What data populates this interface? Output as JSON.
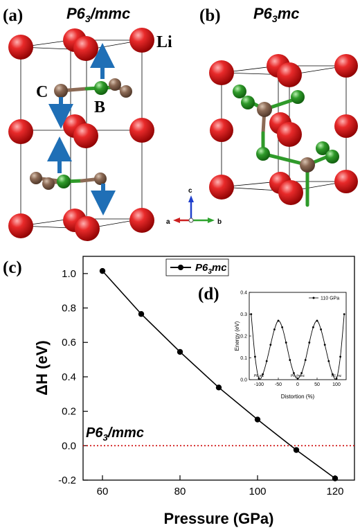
{
  "panel_labels": {
    "a": "(a)",
    "b": "(b)",
    "c": "(c)",
    "d": "(d)"
  },
  "structures": {
    "a_title": {
      "base": "P6",
      "sub": "3",
      "rest": "/mmc"
    },
    "b_title": {
      "base": "P6",
      "sub": "3",
      "rest": "mc"
    },
    "atom_labels": {
      "li": "Li",
      "c": "C",
      "b": "B"
    },
    "atom_colors": {
      "li": "#d81e1e",
      "c": "#8c6a55",
      "b": "#2f9a2a",
      "arrow": "#1f6fb6"
    },
    "compass": {
      "a": "a",
      "b": "b",
      "c": "c"
    }
  },
  "chart_data": [
    {
      "type": "line",
      "panel": "(c)",
      "xlabel": "Pressure (GPa)",
      "ylabel": "ΔH (eV)",
      "xlim": [
        55,
        125
      ],
      "ylim": [
        -0.2,
        1.1
      ],
      "xticks": [
        "60",
        "80",
        "100",
        "120"
      ],
      "yticks": [
        "-0.2",
        "0.0",
        "0.2",
        "0.4",
        "0.6",
        "0.8",
        "1.0"
      ],
      "series": [
        {
          "name": {
            "base": "P6",
            "sub": "3",
            "rest": "mc"
          },
          "color": "#000000",
          "x": [
            60,
            70,
            80,
            90,
            100,
            110,
            120
          ],
          "y": [
            1.015,
            0.765,
            0.545,
            0.338,
            0.152,
            -0.025,
            -0.19
          ]
        }
      ],
      "reference_line": {
        "y": 0.0,
        "color": "#cc0000",
        "style": "dotted",
        "label": {
          "base": "P6",
          "sub": "3",
          "rest": "/mmc"
        }
      },
      "legend_position": "top-left of plot area",
      "grid": false
    },
    {
      "type": "line",
      "panel": "(d)",
      "xlabel": "Distortion (%)",
      "ylabel": "Energy (eV)",
      "xlim": [
        -125,
        125
      ],
      "ylim": [
        0.0,
        0.4
      ],
      "xticks": [
        "-100",
        "-50",
        "0",
        "50",
        "100"
      ],
      "yticks": [
        "0.0",
        "0.1",
        "0.2",
        "0.3",
        "0.4"
      ],
      "series": [
        {
          "name": "110 GPa",
          "color": "#000000",
          "x": [
            -120,
            -110,
            -100,
            -90,
            -80,
            -70,
            -60,
            -50,
            -40,
            -30,
            -20,
            -10,
            0,
            10,
            20,
            30,
            40,
            50,
            60,
            70,
            80,
            90,
            100,
            110,
            120
          ],
          "y": [
            0.3,
            0.105,
            0.005,
            0.025,
            0.085,
            0.16,
            0.23,
            0.27,
            0.24,
            0.17,
            0.09,
            0.03,
            0.005,
            0.03,
            0.09,
            0.17,
            0.24,
            0.27,
            0.23,
            0.16,
            0.085,
            0.025,
            0.005,
            0.105,
            0.3
          ]
        }
      ],
      "annotations": [
        {
          "x": -100,
          "text": {
            "base": "P6",
            "sub": "3",
            "rest": "mc"
          }
        },
        {
          "x": 0,
          "text": {
            "base": "P6",
            "sub": "3",
            "rest": "/mmc"
          }
        },
        {
          "x": 100,
          "text": {
            "base": "P6",
            "sub": "3",
            "rest": "mc"
          }
        }
      ],
      "legend_position": "top-right"
    }
  ]
}
